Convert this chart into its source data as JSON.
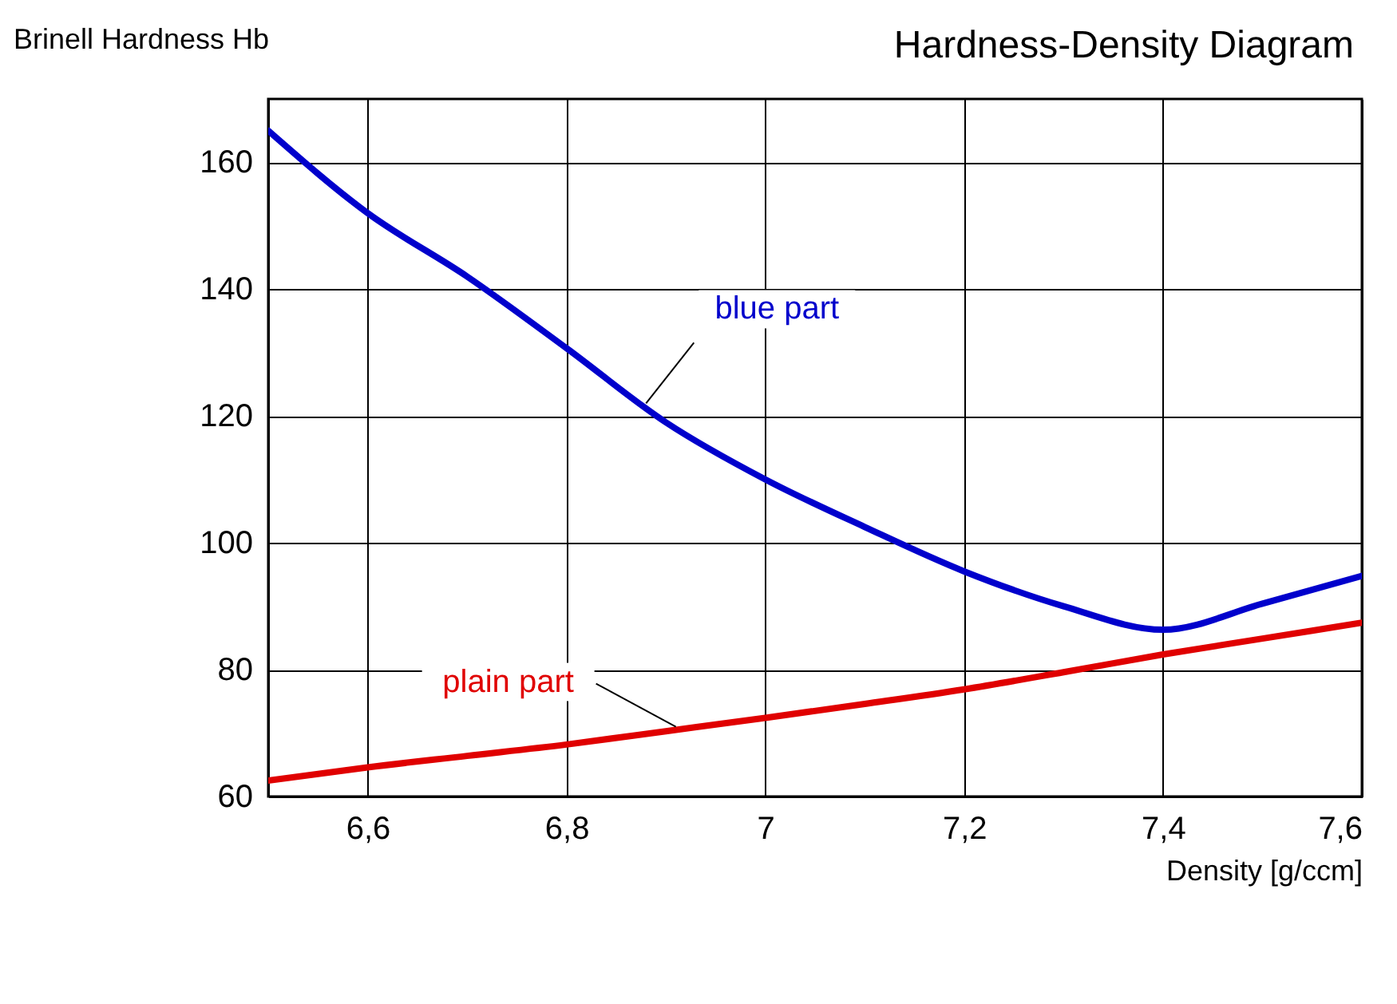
{
  "chart_data": {
    "type": "line",
    "title": "Hardness-Density Diagram",
    "xlabel": "Density [g/ccm]",
    "ylabel": "Brinell Hardness Hb",
    "xlim": [
      6.5,
      7.6
    ],
    "ylim": [
      60,
      170
    ],
    "xticks": [
      {
        "value": 6.5,
        "label": null
      },
      {
        "value": 6.6,
        "label": "6,6"
      },
      {
        "value": 6.8,
        "label": "6,8"
      },
      {
        "value": 7,
        "label": "7"
      },
      {
        "value": 7.2,
        "label": "7,2"
      },
      {
        "value": 7.4,
        "label": "7,4"
      },
      {
        "value": 7.6,
        "label": "7,6"
      }
    ],
    "yticks": [
      60,
      80,
      100,
      120,
      140,
      160
    ],
    "grid": true,
    "legend": false,
    "marker": "none",
    "line_style": "solid",
    "x": [
      6.5,
      6.6,
      6.7,
      6.8,
      6.9,
      7.0,
      7.1,
      7.2,
      7.3,
      7.4,
      7.5,
      7.6
    ],
    "series": [
      {
        "color": "#0000cc",
        "values": [
          165,
          152,
          142,
          130.7,
          119,
          110,
          102.5,
          95.5,
          90,
          86.3,
          90.4,
          94.8
        ]
      },
      {
        "color": "#e00000",
        "values": [
          62.5,
          64.6,
          66.4,
          68.2,
          70.3,
          72.4,
          74.6,
          76.9,
          79.6,
          82.4,
          84.9,
          87.4
        ]
      }
    ],
    "annotations": [
      {
        "text": "blue part",
        "x": 6.88,
        "y": 122
      },
      {
        "text": "plain part",
        "x": 6.91,
        "y": 71
      }
    ]
  }
}
